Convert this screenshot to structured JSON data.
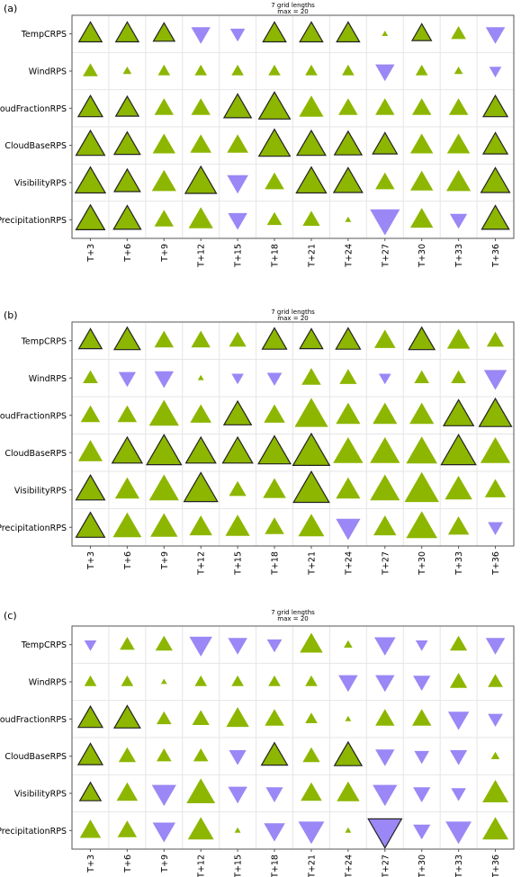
{
  "colors": {
    "positive": "#8db600",
    "negative": "#9b87f5",
    "outline": "#222222"
  },
  "chart_data": [
    {
      "type": "triangle-scorecard",
      "panel_label": "(a)",
      "title": "7 grid lengths",
      "subtitle": "max = 20",
      "rows": [
        "TempCRPS",
        "WindRPS",
        "CloudFractionRPS",
        "CloudBaseRPS",
        "VisibilityRPS",
        "PrecipitationRPS"
      ],
      "columns": [
        "T+3",
        "T+6",
        "T+9",
        "T+12",
        "T+15",
        "T+18",
        "T+21",
        "T+24",
        "T+27",
        "T+30",
        "T+33",
        "T+36"
      ],
      "values": [
        [
          7,
          7,
          6,
          -5,
          -3,
          7,
          7,
          7,
          0.5,
          5,
          3,
          -5
        ],
        [
          3,
          1,
          2,
          2,
          2,
          2,
          2,
          2,
          -5,
          2,
          1,
          -2
        ],
        [
          8,
          7,
          5,
          5,
          10,
          13,
          8,
          5,
          5,
          5,
          5,
          8
        ],
        [
          11,
          9,
          7,
          6,
          6,
          13,
          11,
          10,
          8,
          7,
          7,
          8
        ],
        [
          12,
          9,
          8,
          13,
          -6,
          5,
          12,
          11,
          5,
          7,
          8,
          11
        ],
        [
          11,
          10,
          5,
          8,
          -5,
          3,
          4,
          0.5,
          -12,
          7,
          -4,
          10
        ]
      ],
      "outlined": [
        [
          1,
          1,
          1,
          0,
          0,
          1,
          1,
          1,
          0,
          1,
          0,
          0
        ],
        [
          0,
          0,
          0,
          0,
          0,
          0,
          0,
          0,
          0,
          0,
          0,
          0
        ],
        [
          1,
          1,
          0,
          0,
          1,
          1,
          0,
          0,
          0,
          0,
          0,
          1
        ],
        [
          1,
          1,
          0,
          0,
          0,
          1,
          1,
          1,
          1,
          0,
          0,
          1
        ],
        [
          1,
          1,
          0,
          1,
          0,
          0,
          1,
          1,
          0,
          0,
          0,
          1
        ],
        [
          1,
          1,
          0,
          0,
          0,
          0,
          0,
          0,
          0,
          0,
          0,
          1
        ]
      ]
    },
    {
      "type": "triangle-scorecard",
      "panel_label": "(b)",
      "title": "7 grid lengths",
      "subtitle": "max = 20",
      "rows": [
        "TempCRPS",
        "WindRPS",
        "CloudFractionRPS",
        "CloudBaseRPS",
        "VisibilityRPS",
        "PrecipitationRPS"
      ],
      "columns": [
        "T+3",
        "T+6",
        "T+9",
        "T+12",
        "T+15",
        "T+18",
        "T+21",
        "T+24",
        "T+27",
        "T+30",
        "T+33",
        "T+36"
      ],
      "values": [
        [
          7,
          9,
          5,
          5,
          4,
          8,
          7,
          8,
          6,
          9,
          7,
          4
        ],
        [
          3,
          -4,
          -5,
          0.5,
          -2,
          -3,
          5,
          4,
          -2,
          3,
          3,
          -7
        ],
        [
          5,
          5,
          12,
          6,
          10,
          6,
          15,
          8,
          8,
          8,
          12,
          14
        ],
        [
          8,
          12,
          16,
          12,
          12,
          14,
          18,
          12,
          12,
          13,
          16,
          12
        ],
        [
          11,
          8,
          12,
          15,
          4,
          7,
          17,
          8,
          12,
          16,
          10,
          6
        ],
        [
          11,
          11,
          10,
          7,
          8,
          5,
          9,
          -8,
          7,
          13,
          6,
          -3
        ]
      ],
      "outlined": [
        [
          1,
          1,
          0,
          0,
          0,
          1,
          1,
          1,
          0,
          1,
          0,
          0
        ],
        [
          0,
          0,
          0,
          0,
          0,
          0,
          0,
          0,
          0,
          0,
          0,
          0
        ],
        [
          0,
          0,
          0,
          0,
          1,
          0,
          0,
          0,
          0,
          0,
          1,
          1
        ],
        [
          0,
          1,
          1,
          1,
          1,
          1,
          1,
          0,
          0,
          0,
          1,
          0
        ],
        [
          1,
          0,
          0,
          1,
          0,
          0,
          1,
          0,
          0,
          0,
          0,
          0
        ],
        [
          1,
          0,
          0,
          0,
          0,
          0,
          0,
          0,
          0,
          0,
          0,
          0
        ]
      ]
    },
    {
      "type": "triangle-scorecard",
      "panel_label": "(c)",
      "title": "7 grid lengths",
      "subtitle": "max = 20",
      "rows": [
        "TempCRPS",
        "WindRPS",
        "CloudFractionRPS",
        "CloudBaseRPS",
        "VisibilityRPS",
        "PrecipitationRPS"
      ],
      "columns": [
        "T+3",
        "T+6",
        "T+9",
        "T+12",
        "T+15",
        "T+18",
        "T+21",
        "T+24",
        "T+27",
        "T+30",
        "T+33",
        "T+36"
      ],
      "values": [
        [
          -2,
          3,
          4,
          -7,
          -5,
          -3,
          7,
          1,
          -6,
          -2,
          4,
          -5
        ],
        [
          2,
          2,
          0.5,
          2,
          2,
          2,
          2,
          -5,
          -5,
          -4,
          4,
          3
        ],
        [
          8,
          9,
          3,
          4,
          7,
          5,
          2,
          0.5,
          5,
          5,
          -6,
          -3
        ],
        [
          8,
          4,
          3,
          3,
          -4,
          9,
          4,
          10,
          -5,
          -3,
          -4,
          1
        ],
        [
          6,
          6,
          -8,
          11,
          -5,
          -4,
          6,
          7,
          -8,
          -4,
          -3,
          9
        ],
        [
          6,
          5,
          -7,
          9,
          0.5,
          -6,
          -9,
          0.5,
          -15,
          -4,
          -9,
          9
        ]
      ],
      "outlined": [
        [
          0,
          0,
          0,
          0,
          0,
          0,
          0,
          0,
          0,
          0,
          0,
          0
        ],
        [
          0,
          0,
          0,
          0,
          0,
          0,
          0,
          0,
          0,
          0,
          0,
          0
        ],
        [
          1,
          1,
          0,
          0,
          0,
          0,
          0,
          0,
          0,
          0,
          0,
          0
        ],
        [
          1,
          0,
          0,
          0,
          0,
          1,
          0,
          1,
          0,
          0,
          0,
          0
        ],
        [
          1,
          0,
          0,
          0,
          0,
          0,
          0,
          0,
          0,
          0,
          0,
          0
        ],
        [
          0,
          0,
          0,
          0,
          0,
          0,
          0,
          0,
          1,
          0,
          0,
          0
        ]
      ]
    }
  ]
}
